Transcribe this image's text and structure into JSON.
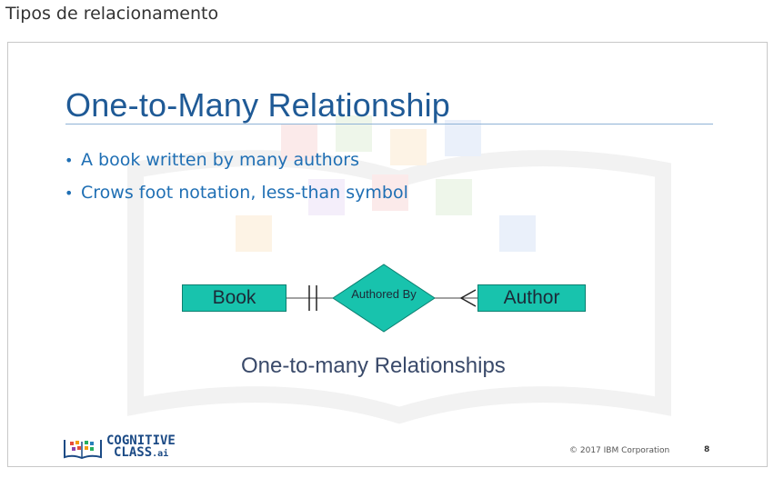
{
  "page": {
    "heading": "Tipos de relacionamento"
  },
  "slide": {
    "title": "One-to-Many Relationship",
    "bullets": [
      "A book written by many authors",
      "Crows foot notation, less-than symbol"
    ],
    "diagram": {
      "entity_left": "Book",
      "relationship": "Authored By",
      "entity_right": "Author",
      "caption": "One-to-many Relationships"
    },
    "footer": {
      "logo_line1": "COGNITIVE",
      "logo_line2": "CLASS",
      "logo_suffix": ".ai",
      "copyright": "© 2017 IBM Corporation",
      "slide_number": "8"
    }
  },
  "colors": {
    "title": "#1f5a96",
    "bullets": "#1f6fb4",
    "entity_fill": "#18c3ad",
    "caption": "#3a4a6a"
  },
  "icons": [
    "cognitive-class-logo-icon",
    "bullet-dot-icon",
    "crows-foot-icon",
    "one-bar-icon"
  ]
}
